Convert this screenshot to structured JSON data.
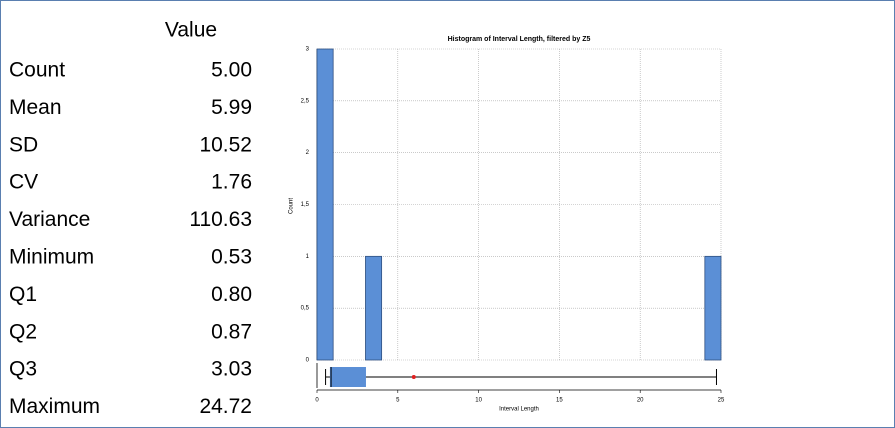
{
  "table": {
    "header": "Value",
    "rows": [
      [
        "Count",
        "5.00"
      ],
      [
        "Mean",
        "5.99"
      ],
      [
        "SD",
        "10.52"
      ],
      [
        "CV",
        "1.76"
      ],
      [
        "Variance",
        "110.63"
      ],
      [
        "Minimum",
        "0.53"
      ],
      [
        "Q1",
        "0.80"
      ],
      [
        "Q2",
        "0.87"
      ],
      [
        "Q3",
        "3.03"
      ],
      [
        "Maximum",
        "24.72"
      ]
    ]
  },
  "chart_data": {
    "type": "histogram",
    "title": "Histogram of Interval Length, filtered by Z5",
    "x_label": "Interval Length",
    "y_label": "Count",
    "bins": [
      0,
      1,
      2,
      3,
      4,
      5,
      6,
      7,
      8,
      9,
      10,
      11,
      12,
      13,
      14,
      15,
      16,
      17,
      18,
      19,
      20,
      21,
      22,
      23,
      24,
      25
    ],
    "values": [
      3,
      0,
      0,
      1,
      0,
      0,
      0,
      0,
      0,
      0,
      0,
      0,
      0,
      0,
      0,
      0,
      0,
      0,
      0,
      0,
      0,
      0,
      0,
      0,
      1
    ],
    "color": "#5b8fd6",
    "xlim": [
      0,
      25
    ],
    "xticks": [
      0,
      5,
      10,
      15,
      20,
      25
    ],
    "ylim": [
      0,
      3
    ],
    "yticks": [
      0,
      {
        "value": 0.5,
        "label": "0,5"
      },
      1,
      {
        "value": 1.5,
        "label": "1,5"
      },
      2,
      {
        "value": 2.5,
        "label": "2,5"
      },
      3
    ],
    "grid": true,
    "boxplot": {
      "min": 0.53,
      "q1": 0.8,
      "median": 0.87,
      "q3": 3.03,
      "max": 24.72,
      "mean": 5.99,
      "mean_color": "#e02020"
    }
  }
}
